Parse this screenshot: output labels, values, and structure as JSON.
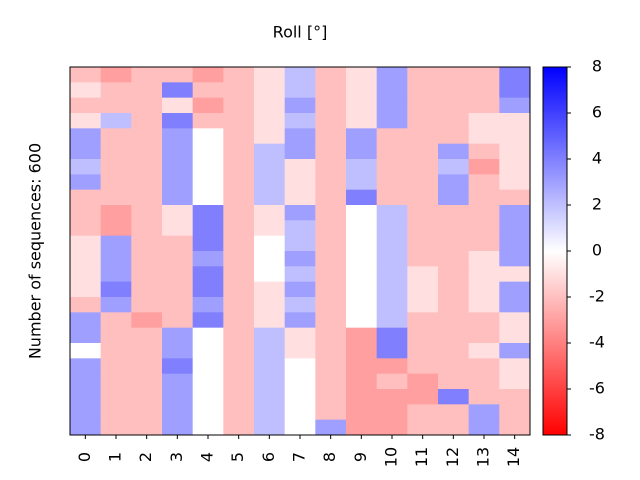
{
  "chart_data": {
    "type": "heatmap",
    "title": "Roll [°]",
    "ylabel": "Number of sequences: 600",
    "colormap": "bwr",
    "zlim": [
      -8,
      8
    ],
    "zticks": [
      -8,
      -6,
      -4,
      -2,
      0,
      2,
      4,
      6,
      8
    ],
    "categories": [
      "0",
      "1",
      "2",
      "3",
      "4",
      "5",
      "6",
      "7",
      "8",
      "9",
      "10",
      "11",
      "12",
      "13",
      "14"
    ],
    "values": [
      [
        -2,
        -3,
        -2,
        -2,
        -3,
        -2,
        -1,
        2,
        -2,
        -1,
        3,
        -2,
        -2,
        -2,
        4
      ],
      [
        -1,
        -2,
        -2,
        4,
        -2,
        -2,
        -1,
        2,
        -2,
        -1,
        3,
        -2,
        -2,
        -2,
        4
      ],
      [
        -2,
        -2,
        -2,
        -1,
        -3,
        -2,
        -1,
        3,
        -2,
        -1,
        3,
        -2,
        -2,
        -2,
        3
      ],
      [
        -1,
        2,
        -2,
        4,
        -2,
        -2,
        -1,
        2,
        -2,
        -1,
        3,
        -2,
        -2,
        -1,
        -1
      ],
      [
        3,
        -2,
        -2,
        3,
        0,
        -2,
        -1,
        3,
        -2,
        3,
        -2,
        -2,
        -2,
        -1,
        -1
      ],
      [
        3,
        -2,
        -2,
        3,
        0,
        -2,
        2,
        3,
        -2,
        3,
        -2,
        -2,
        3,
        -2,
        -1
      ],
      [
        2,
        -2,
        -2,
        3,
        0,
        -2,
        2,
        -1,
        -2,
        2,
        -2,
        -2,
        2,
        -3,
        -1
      ],
      [
        3,
        -2,
        -2,
        3,
        0,
        -2,
        2,
        -1,
        -2,
        2,
        -2,
        -2,
        3,
        -2,
        -1
      ],
      [
        -2,
        -2,
        -2,
        3,
        0,
        -2,
        2,
        -1,
        -2,
        4,
        -2,
        -2,
        3,
        -2,
        -2
      ],
      [
        -2,
        -3,
        -2,
        -1,
        4,
        -2,
        -1,
        3,
        -2,
        0,
        2,
        -2,
        -2,
        -2,
        3
      ],
      [
        -2,
        -3,
        -2,
        -1,
        4,
        -2,
        -1,
        2,
        -2,
        0,
        2,
        -2,
        -2,
        -2,
        3
      ],
      [
        -1,
        3,
        -2,
        -2,
        4,
        -2,
        0,
        2,
        -2,
        0,
        2,
        -2,
        -2,
        -2,
        3
      ],
      [
        -1,
        3,
        -2,
        -2,
        3,
        -2,
        0,
        3,
        -2,
        0,
        2,
        -2,
        -2,
        -1,
        3
      ],
      [
        -1,
        3,
        -2,
        -2,
        4,
        -2,
        0,
        2,
        -2,
        0,
        2,
        -1,
        -2,
        -1,
        -1
      ],
      [
        -1,
        4,
        -2,
        -2,
        4,
        -2,
        -1,
        3,
        -2,
        0,
        2,
        -1,
        -2,
        -1,
        3
      ],
      [
        -2,
        3,
        -2,
        -2,
        3,
        -2,
        -1,
        2,
        -2,
        0,
        2,
        -1,
        -2,
        -1,
        3
      ],
      [
        3,
        -2,
        -3,
        -2,
        4,
        -2,
        -1,
        3,
        -2,
        0,
        2,
        -2,
        -2,
        -2,
        -1
      ],
      [
        3,
        -2,
        -2,
        3,
        0,
        -2,
        2,
        -1,
        -2,
        -3,
        4,
        -2,
        -2,
        -2,
        -1
      ],
      [
        0,
        -2,
        -2,
        3,
        0,
        -2,
        2,
        -1,
        -2,
        -3,
        4,
        -2,
        -2,
        -1,
        3
      ],
      [
        3,
        -2,
        -2,
        4,
        0,
        -2,
        2,
        0,
        -2,
        -3,
        -3,
        -2,
        -2,
        -2,
        -1
      ],
      [
        3,
        -2,
        -2,
        3,
        0,
        -2,
        2,
        0,
        -2,
        -3,
        -2,
        -3,
        -2,
        -2,
        -1
      ],
      [
        3,
        -2,
        -2,
        3,
        0,
        -2,
        2,
        0,
        -2,
        -3,
        -3,
        -3,
        4,
        -2,
        -2
      ],
      [
        3,
        -2,
        -2,
        3,
        0,
        -2,
        2,
        0,
        -2,
        -3,
        -3,
        -2,
        -2,
        3,
        -2
      ],
      [
        3,
        -2,
        -2,
        3,
        0,
        -2,
        2,
        0,
        3,
        -3,
        -3,
        -2,
        -2,
        3,
        -2
      ]
    ]
  }
}
